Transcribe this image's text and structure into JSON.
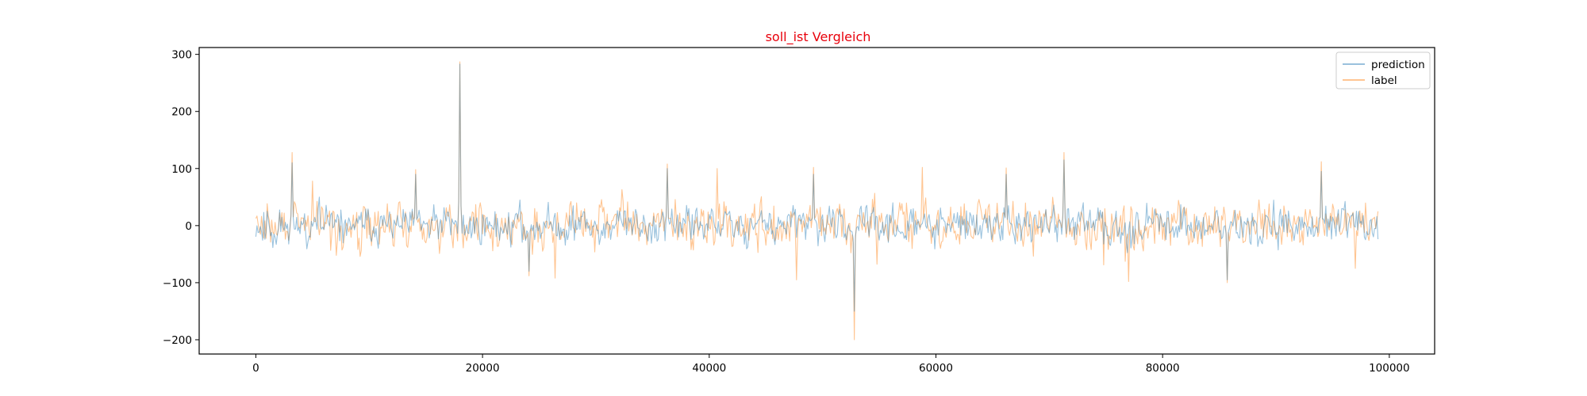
{
  "chart_data": {
    "type": "line",
    "title": "soll_ist Vergleich",
    "title_color": "#e8000b",
    "xlim": [
      -5000,
      104000
    ],
    "ylim": [
      -225,
      312
    ],
    "x_ticks": [
      0,
      20000,
      40000,
      60000,
      80000,
      100000
    ],
    "x_tick_labels": [
      "0",
      "20000",
      "40000",
      "60000",
      "80000",
      "100000"
    ],
    "y_ticks": [
      -200,
      -100,
      0,
      100,
      200,
      300
    ],
    "y_tick_labels": [
      "−200",
      "−100",
      "0",
      "100",
      "200",
      "300"
    ],
    "grid": false,
    "legend_position": "top-right",
    "x_step": 100,
    "x_start": 0,
    "n_points": 991,
    "series": [
      {
        "name": "prediction",
        "color": "#1f77b4",
        "opacity": 0.45,
        "baseline_amplitude": 22,
        "seed": 11,
        "spikes": [
          [
            3200,
            110
          ],
          [
            14100,
            90
          ],
          [
            18000,
            283
          ],
          [
            24100,
            -80
          ],
          [
            36300,
            100
          ],
          [
            49200,
            90
          ],
          [
            52800,
            -150
          ],
          [
            66200,
            90
          ],
          [
            71300,
            115
          ],
          [
            85700,
            -95
          ],
          [
            94000,
            95
          ]
        ]
      },
      {
        "name": "label",
        "color": "#ff7f0e",
        "opacity": 0.45,
        "baseline_amplitude": 27,
        "seed": 29,
        "spikes": [
          [
            3200,
            128
          ],
          [
            5000,
            78
          ],
          [
            14100,
            98
          ],
          [
            18000,
            287
          ],
          [
            24100,
            -88
          ],
          [
            26400,
            -92
          ],
          [
            36300,
            108
          ],
          [
            40700,
            100
          ],
          [
            47700,
            -95
          ],
          [
            49200,
            102
          ],
          [
            52800,
            -200
          ],
          [
            58800,
            102
          ],
          [
            66200,
            101
          ],
          [
            71300,
            128
          ],
          [
            77000,
            -98
          ],
          [
            85700,
            -100
          ],
          [
            94000,
            112
          ],
          [
            97000,
            -75
          ]
        ]
      }
    ]
  }
}
